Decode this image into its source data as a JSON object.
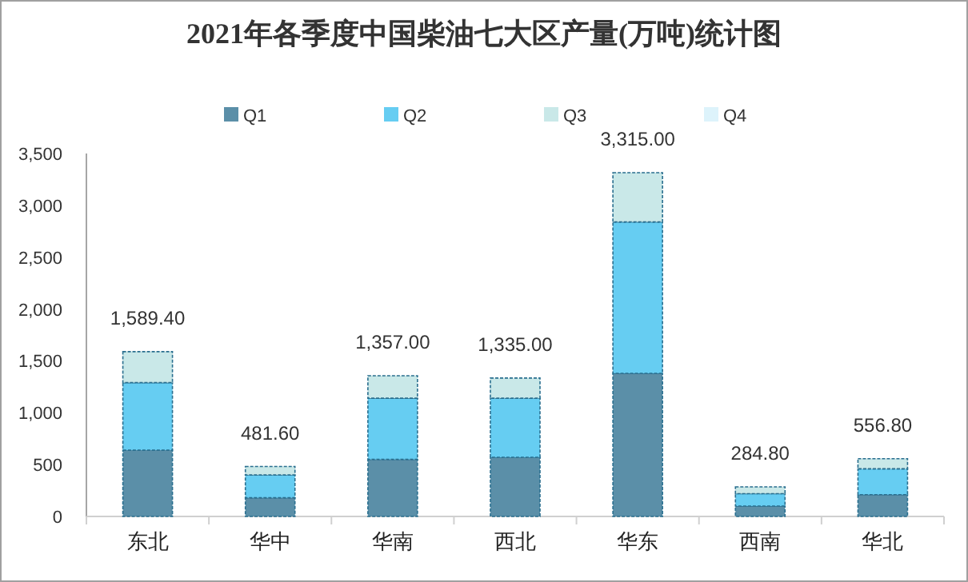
{
  "chart_data": {
    "type": "bar",
    "title": "2021年各季度中国柴油七大区产量(万吨)统计图",
    "stacked": true,
    "categories": [
      "东北",
      "华中",
      "华南",
      "西北",
      "华东",
      "西南",
      "华北"
    ],
    "series": [
      {
        "name": "Q1",
        "color": "#5b8fa8",
        "values": [
          640,
          180,
          550,
          570,
          1380,
          100,
          210
        ]
      },
      {
        "name": "Q2",
        "color": "#66cdf2",
        "values": [
          650,
          220,
          590,
          570,
          1460,
          120,
          250
        ]
      },
      {
        "name": "Q3",
        "color": "#c9e8e8",
        "values": [
          299.4,
          81.6,
          217,
          195,
          475,
          64.8,
          96.8
        ]
      },
      {
        "name": "Q4",
        "color": "#ddf3fb",
        "values": [
          0,
          0,
          0,
          0,
          0,
          0,
          0
        ]
      }
    ],
    "totals": [
      "1,589.40",
      "481.60",
      "1,357.00",
      "1,335.00",
      "3,315.00",
      "284.80",
      "556.80"
    ],
    "ylim": [
      0,
      3500
    ],
    "yticks": [
      {
        "value": 0,
        "label": "0"
      },
      {
        "value": 500,
        "label": "500"
      },
      {
        "value": 1000,
        "label": "1,000"
      },
      {
        "value": 1500,
        "label": "1,500"
      },
      {
        "value": 2000,
        "label": "2,000"
      },
      {
        "value": 2500,
        "label": "2,500"
      },
      {
        "value": 3000,
        "label": "3,000"
      },
      {
        "value": 3500,
        "label": "3,500"
      }
    ],
    "grid": false,
    "legend": "top"
  }
}
